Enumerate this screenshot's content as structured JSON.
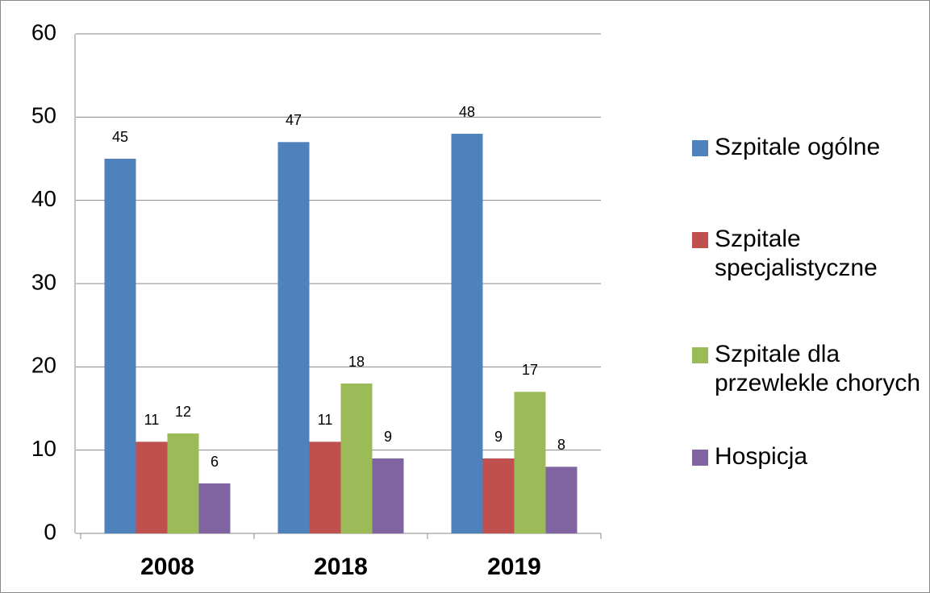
{
  "chart_data": {
    "type": "bar",
    "categories": [
      "2008",
      "2018",
      "2019"
    ],
    "series": [
      {
        "name": "Szpitale ogólne",
        "color": "#4f81bd",
        "values": [
          45,
          47,
          48
        ]
      },
      {
        "name": "Szpitale specjalistyczne",
        "color": "#c0504d",
        "values": [
          11,
          11,
          9
        ]
      },
      {
        "name": "Szpitale dla przewlekle chorych",
        "color": "#9bbb59",
        "values": [
          12,
          18,
          17
        ]
      },
      {
        "name": "Hospicja",
        "color": "#8064a2",
        "values": [
          6,
          9,
          8
        ]
      }
    ],
    "ylim": [
      0,
      60
    ],
    "yticks": [
      0,
      10,
      20,
      30,
      40,
      50,
      60
    ],
    "grid": true,
    "legend": "right"
  }
}
